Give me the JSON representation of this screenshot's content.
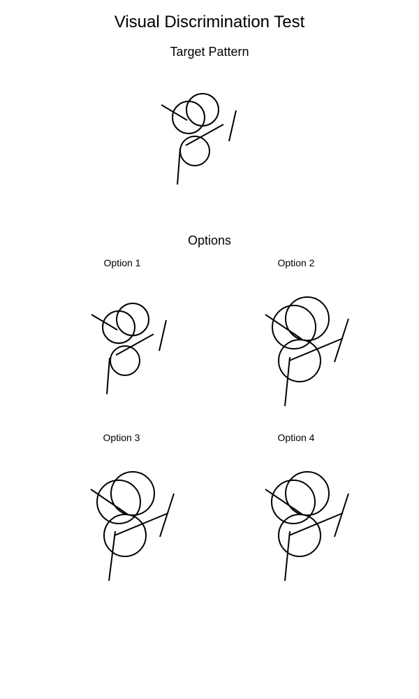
{
  "page": {
    "title": "Visual Discrimination Test"
  },
  "target": {
    "heading": "Target Pattern"
  },
  "options": {
    "heading": "Options",
    "items": [
      {
        "label": "Option 1"
      },
      {
        "label": "Option 2"
      },
      {
        "label": "Option 3"
      },
      {
        "label": "Option 4"
      }
    ]
  },
  "colors": {
    "background": "#ffffff",
    "stroke": "#000000"
  }
}
